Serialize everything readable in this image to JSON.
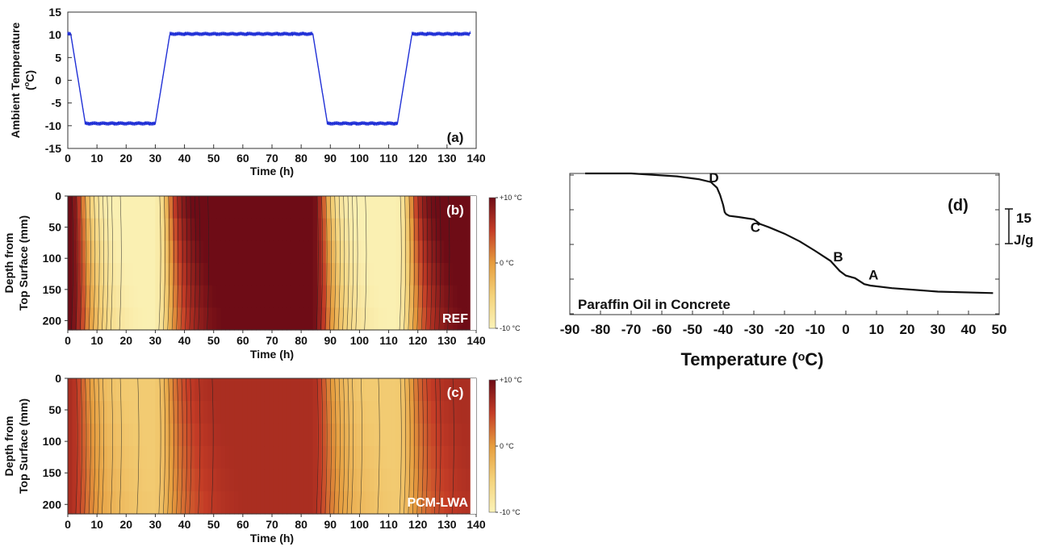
{
  "chart_data": [
    {
      "panel": "(a)",
      "type": "line",
      "xlabel": "Time (h)",
      "ylabel": "Ambient Temperature",
      "ylabel_unit": "(oC)",
      "xlim": [
        0,
        140
      ],
      "ylim": [
        -15,
        15
      ],
      "xticks": [
        0,
        10,
        20,
        30,
        40,
        50,
        60,
        70,
        80,
        90,
        100,
        110,
        120,
        130,
        140
      ],
      "yticks": [
        15,
        10,
        5,
        0,
        -5,
        -10,
        -15
      ],
      "color": "#1f2fd6",
      "series": [
        {
          "x": [
            0,
            1,
            6,
            30,
            35,
            84,
            89,
            113,
            118,
            138
          ],
          "y": [
            10.2,
            10.2,
            -9.5,
            -9.5,
            10.2,
            10.2,
            -9.5,
            -9.5,
            10.2,
            10.2
          ]
        }
      ]
    },
    {
      "panel": "(b)",
      "type": "heatmap",
      "label": "REF",
      "xlabel": "Time (h)",
      "ylabel": "Depth from",
      "ylabel_line2": "Top Surface (mm)",
      "xlim": [
        0,
        140
      ],
      "ylim": [
        0,
        215
      ],
      "xticks": [
        0,
        10,
        20,
        30,
        40,
        50,
        60,
        70,
        80,
        90,
        100,
        110,
        120,
        130,
        140
      ],
      "yticks": [
        0,
        50,
        100,
        150,
        200
      ],
      "colorbar": {
        "top": "+10 °C",
        "middle": "0 °C",
        "bottom": "-10 °C"
      }
    },
    {
      "panel": "(c)",
      "type": "heatmap",
      "label": "PCM-LWA",
      "xlabel": "Time (h)",
      "ylabel": "Depth from",
      "ylabel_line2": "Top Surface (mm)",
      "xlim": [
        0,
        140
      ],
      "ylim": [
        0,
        215
      ],
      "xticks": [
        0,
        10,
        20,
        30,
        40,
        50,
        60,
        70,
        80,
        90,
        100,
        110,
        120,
        130,
        140
      ],
      "yticks": [
        0,
        50,
        100,
        150,
        200
      ],
      "colorbar": {
        "top": "+10 °C",
        "middle": "0 °C",
        "bottom": "-10 °C"
      }
    },
    {
      "panel": "(d)",
      "type": "line",
      "title": "Paraffin Oil in Concrete",
      "xlabel": "Temperature",
      "xlabel_unit": "(oC)",
      "xlim": [
        -90,
        50
      ],
      "xticks": [
        -90,
        -80,
        -70,
        -60,
        -50,
        -40,
        -30,
        -20,
        -10,
        0,
        10,
        20,
        30,
        40,
        50
      ],
      "scale_bar": {
        "value": "15",
        "unit": "J/g"
      },
      "annotations": [
        {
          "text": "D",
          "x": -42.5
        },
        {
          "text": "C",
          "x": -29.5
        },
        {
          "text": "B",
          "x": -2.5
        },
        {
          "text": "A",
          "x": 8.5
        }
      ],
      "series": [
        {
          "x": [
            -85,
            -70,
            -55,
            -48,
            -44,
            -42,
            -41,
            -40,
            -39.5,
            -39,
            -38,
            -35,
            -30,
            -28,
            -27,
            -25,
            -20,
            -15,
            -10,
            -5,
            -2,
            0,
            3,
            6,
            8,
            15,
            30,
            48
          ],
          "y": [
            0,
            0,
            -1,
            -2,
            -3,
            -5,
            -7.5,
            -11,
            -13.5,
            -14.2,
            -14.8,
            -15.2,
            -16,
            -17.6,
            -18,
            -18.8,
            -21,
            -23.7,
            -27,
            -30.5,
            -34,
            -35.6,
            -36.5,
            -38.6,
            -39.1,
            -40,
            -41.2,
            -41.7
          ]
        }
      ]
    }
  ]
}
